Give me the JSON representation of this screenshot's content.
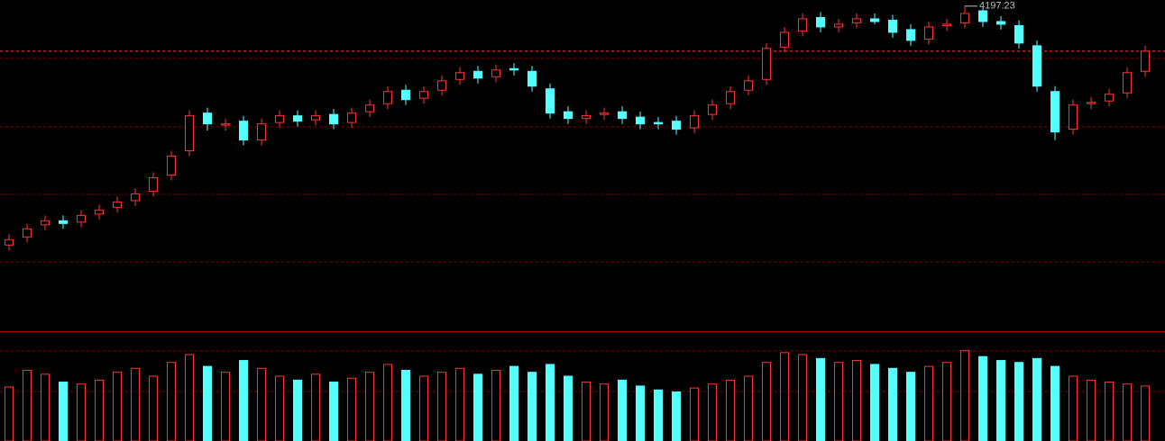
{
  "chart_data": {
    "type": "candlestick",
    "open": [
      3310,
      3340,
      3385,
      3400,
      3395,
      3425,
      3450,
      3475,
      3510,
      3570,
      3660,
      3800,
      3755,
      3770,
      3700,
      3765,
      3790,
      3775,
      3795,
      3765,
      3805,
      3835,
      3885,
      3855,
      3885,
      3925,
      3955,
      3935,
      3965,
      3955,
      3890,
      3805,
      3780,
      3795,
      3805,
      3785,
      3765,
      3770,
      3745,
      3795,
      3835,
      3885,
      3925,
      4045,
      4105,
      4155,
      4120,
      4135,
      4150,
      4145,
      4110,
      4075,
      4125,
      4135,
      4180,
      4140,
      4125,
      4050,
      3880,
      3740,
      3835,
      3845,
      3875,
      3955
    ],
    "close": [
      3330,
      3370,
      3400,
      3390,
      3420,
      3440,
      3470,
      3500,
      3560,
      3640,
      3790,
      3760,
      3760,
      3700,
      3760,
      3790,
      3770,
      3790,
      3760,
      3800,
      3830,
      3880,
      3850,
      3880,
      3920,
      3950,
      3930,
      3960,
      3960,
      3900,
      3800,
      3780,
      3790,
      3800,
      3780,
      3760,
      3760,
      3740,
      3790,
      3830,
      3880,
      3920,
      4040,
      4100,
      4150,
      4120,
      4130,
      4150,
      4140,
      4100,
      4070,
      4120,
      4130,
      4170,
      4140,
      4130,
      4060,
      3900,
      3730,
      3830,
      3840,
      3870,
      3950,
      4030
    ],
    "high": [
      3350,
      3390,
      3420,
      3420,
      3440,
      3460,
      3490,
      3520,
      3580,
      3660,
      3810,
      3820,
      3780,
      3790,
      3780,
      3810,
      3810,
      3810,
      3815,
      3820,
      3850,
      3900,
      3905,
      3900,
      3940,
      3970,
      3975,
      3980,
      3985,
      3975,
      3910,
      3825,
      3810,
      3820,
      3825,
      3805,
      3785,
      3790,
      3810,
      3850,
      3900,
      3940,
      4060,
      4120,
      4170,
      4175,
      4150,
      4170,
      4170,
      4165,
      4130,
      4140,
      4150,
      4197.23,
      4190,
      4160,
      4145,
      4070,
      3900,
      3850,
      3860,
      3890,
      3970,
      4050
    ],
    "low": [
      3290,
      3320,
      3365,
      3370,
      3375,
      3405,
      3430,
      3455,
      3490,
      3550,
      3640,
      3735,
      3735,
      3680,
      3680,
      3745,
      3750,
      3755,
      3740,
      3745,
      3785,
      3815,
      3830,
      3835,
      3865,
      3905,
      3910,
      3915,
      3940,
      3880,
      3780,
      3760,
      3760,
      3775,
      3760,
      3740,
      3740,
      3720,
      3725,
      3775,
      3815,
      3865,
      3905,
      4025,
      4085,
      4100,
      4100,
      4115,
      4130,
      4080,
      4050,
      4055,
      4105,
      4115,
      4120,
      4110,
      4040,
      3880,
      3700,
      3720,
      3815,
      3825,
      3855,
      3935
    ],
    "volume": [
      55,
      72,
      68,
      60,
      58,
      62,
      70,
      74,
      66,
      80,
      88,
      76,
      70,
      82,
      74,
      66,
      62,
      68,
      60,
      64,
      70,
      78,
      72,
      66,
      70,
      74,
      68,
      72,
      76,
      70,
      78,
      66,
      60,
      58,
      62,
      56,
      52,
      50,
      54,
      58,
      62,
      66,
      80,
      90,
      88,
      84,
      80,
      82,
      78,
      74,
      70,
      76,
      80,
      92,
      86,
      82,
      80,
      84,
      76,
      66,
      62,
      60,
      58,
      56
    ],
    "ylim": [
      3000,
      4220
    ],
    "vlim": [
      0,
      110
    ],
    "up_color": "#ff3232",
    "down_color": "#54ffff"
  }
}
